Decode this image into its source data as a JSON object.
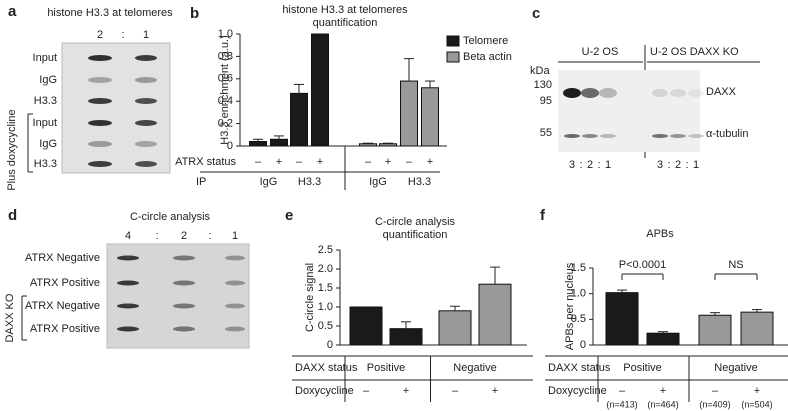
{
  "blots": {
    "a": {
      "label": "a",
      "title": "histone H3.3 at telomeres",
      "lanes": [
        "2",
        ":",
        "1"
      ],
      "rows": [
        "Input",
        "IgG",
        "H3.3",
        "Input",
        "IgG",
        "H3.3"
      ],
      "side_label": "Plus doxycycline"
    },
    "c": {
      "label": "c",
      "groups": [
        "U-2 OS",
        "U-2 OS DAXX KO"
      ],
      "kda_label": "kDa",
      "markers": [
        "130",
        "95",
        "55"
      ],
      "proteins": [
        "DAXX",
        "α-tubulin"
      ],
      "lanes": [
        "3",
        ":",
        "2",
        ":",
        "1"
      ]
    },
    "d": {
      "label": "d",
      "title": "C-circle analysis",
      "lanes": [
        "4",
        ":",
        "2",
        ":",
        "1"
      ],
      "rows": [
        "ATRX Negative",
        "ATRX Positive",
        "ATRX Negative",
        "ATRX Positive"
      ],
      "side_label": "DAXX KO"
    }
  },
  "chart_data": [
    {
      "type": "bar",
      "label": "b",
      "title": [
        "histone H3.3 at telomeres",
        "quantification"
      ],
      "y_label": "H3.3 enrichment (a.u.)",
      "ylim": [
        0,
        1
      ],
      "yticks": [
        0,
        0.2,
        0.4,
        0.6,
        0.8,
        {
          "value": 1,
          "label": "1.0"
        }
      ],
      "categories": [
        "–",
        "+",
        "–",
        "+"
      ],
      "groups": [
        "IgG",
        "H3.3"
      ],
      "row_labels": [
        "ATRX status",
        "IP"
      ],
      "series": [
        {
          "name": "Telomere",
          "color": "#1a1a1a",
          "values": [
            0.04,
            0.06,
            0.47,
            1.0
          ],
          "errors": [
            0.02,
            0.03,
            0.08,
            null
          ]
        },
        {
          "name": "Beta actin",
          "color": "#999999",
          "values": [
            0.02,
            0.02,
            0.58,
            0.52
          ],
          "errors": [
            0.005,
            0.005,
            0.2,
            0.06
          ]
        }
      ]
    },
    {
      "type": "bar",
      "label": "e",
      "title": [
        "C-circle analysis",
        "quantification"
      ],
      "y_label": "C-circle signal",
      "ylim": [
        0,
        2.5
      ],
      "yticks": [
        0,
        0.5,
        {
          "value": 1,
          "label": "1.0"
        },
        1.5,
        {
          "value": 2,
          "label": "2.0"
        },
        2.5
      ],
      "categories": [
        "–",
        "+",
        "–",
        "+"
      ],
      "groups": [
        "Positive",
        "Negative"
      ],
      "row_labels": [
        "DAXX status",
        "Doxycycline"
      ],
      "values": [
        1.0,
        0.43,
        0.9,
        1.6
      ],
      "errors": [
        null,
        0.18,
        0.12,
        0.45
      ],
      "colors": [
        "#1a1a1a",
        "#1a1a1a",
        "#999999",
        "#999999"
      ]
    },
    {
      "type": "bar",
      "label": "f",
      "title": [
        "APBs"
      ],
      "y_label": "APBs per nucleus",
      "ylim": [
        0,
        1.5
      ],
      "yticks": [
        0,
        0.5,
        {
          "value": 1,
          "label": "1.0"
        },
        1.5
      ],
      "categories": [
        "–",
        "+",
        "–",
        "+"
      ],
      "groups": [
        "Positive",
        "Negative"
      ],
      "row_labels": [
        "DAXX status",
        "Doxycycline"
      ],
      "values": [
        1.02,
        0.23,
        0.58,
        0.64
      ],
      "errors": [
        0.05,
        0.03,
        0.05,
        0.05
      ],
      "colors": [
        "#1a1a1a",
        "#1a1a1a",
        "#999999",
        "#999999"
      ],
      "annotations": [
        "P<0.0001",
        "NS"
      ],
      "n_labels": [
        "(n=413)",
        "(n=464)",
        "(n=409)",
        "(n=504)"
      ]
    }
  ]
}
